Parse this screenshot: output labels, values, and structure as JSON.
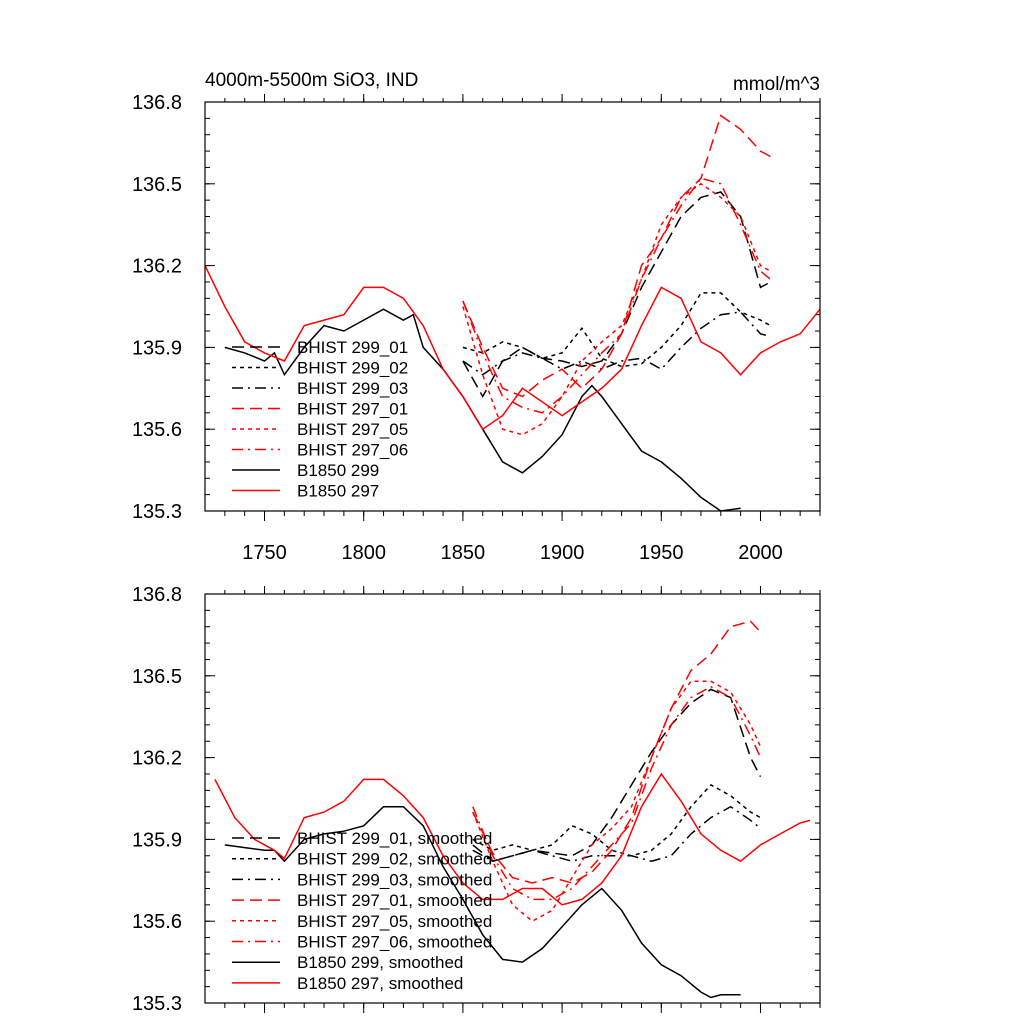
{
  "chart_data": [
    {
      "type": "line",
      "title_left": "4000m-5500m SiO3, IND",
      "title_right": "mmol/m^3",
      "xlabel": "",
      "ylabel": "",
      "xlim": [
        1720,
        2030
      ],
      "ylim": [
        135.3,
        136.8
      ],
      "x_ticks": [
        1750,
        1800,
        1850,
        1900,
        1950,
        2000
      ],
      "x_tick_labels": [
        "1750",
        "1800",
        "1850",
        "1900",
        "1950",
        "2000"
      ],
      "y_ticks": [
        135.3,
        135.6,
        135.9,
        136.2,
        136.5,
        136.8
      ],
      "y_tick_labels": [
        "135.3",
        "135.6",
        "135.9",
        "136.2",
        "136.5",
        "136.8"
      ],
      "legend_position": "left-middle",
      "series": [
        {
          "name": "BHIST 299_01",
          "color": "#000000",
          "dash": "long-dash",
          "x": [
            1850,
            1860,
            1870,
            1880,
            1890,
            1900,
            1910,
            1920,
            1930,
            1940,
            1950,
            1960,
            1970,
            1980,
            1990,
            2000,
            2005
          ],
          "y": [
            135.85,
            135.72,
            135.85,
            135.9,
            135.86,
            135.85,
            135.83,
            135.85,
            135.95,
            136.12,
            136.25,
            136.38,
            136.45,
            136.47,
            136.38,
            136.12,
            136.14
          ]
        },
        {
          "name": "BHIST 299_02",
          "color": "#000000",
          "dash": "short-dash",
          "x": [
            1850,
            1860,
            1870,
            1880,
            1890,
            1900,
            1910,
            1920,
            1930,
            1940,
            1950,
            1960,
            1970,
            1980,
            1990,
            2000,
            2005
          ],
          "y": [
            135.9,
            135.88,
            135.92,
            135.9,
            135.86,
            135.88,
            135.97,
            135.86,
            135.83,
            135.84,
            135.9,
            135.98,
            136.1,
            136.1,
            136.03,
            136.0,
            135.98
          ]
        },
        {
          "name": "BHIST 299_03",
          "color": "#000000",
          "dash": "dash-dot",
          "x": [
            1850,
            1860,
            1870,
            1880,
            1890,
            1900,
            1910,
            1920,
            1930,
            1940,
            1950,
            1960,
            1970,
            1980,
            1990,
            2000,
            2005
          ],
          "y": [
            135.85,
            135.8,
            135.85,
            135.88,
            135.86,
            135.82,
            135.85,
            135.82,
            135.85,
            135.86,
            135.82,
            135.9,
            135.97,
            136.02,
            136.03,
            135.95,
            135.94
          ]
        },
        {
          "name": "BHIST 297_01",
          "color": "#ff0000",
          "dash": "long-dash",
          "x": [
            1850,
            1860,
            1870,
            1880,
            1890,
            1900,
            1910,
            1920,
            1930,
            1940,
            1950,
            1960,
            1970,
            1980,
            1990,
            2000,
            2005
          ],
          "y": [
            136.07,
            135.9,
            135.75,
            135.72,
            135.78,
            135.82,
            135.75,
            135.82,
            135.95,
            136.2,
            136.3,
            136.45,
            136.52,
            136.75,
            136.7,
            136.62,
            136.6
          ]
        },
        {
          "name": "BHIST 297_05",
          "color": "#ff0000",
          "dash": "short-dash",
          "x": [
            1850,
            1860,
            1870,
            1880,
            1890,
            1900,
            1910,
            1920,
            1930,
            1940,
            1950,
            1960,
            1970,
            1980,
            1990,
            2000,
            2005
          ],
          "y": [
            136.05,
            135.8,
            135.6,
            135.58,
            135.62,
            135.72,
            135.85,
            135.92,
            135.98,
            136.15,
            136.35,
            136.45,
            136.5,
            136.45,
            136.38,
            136.2,
            136.18
          ]
        },
        {
          "name": "BHIST 297_06",
          "color": "#ff0000",
          "dash": "dash-dot",
          "x": [
            1850,
            1860,
            1870,
            1880,
            1890,
            1900,
            1910,
            1920,
            1930,
            1940,
            1950,
            1960,
            1970,
            1980,
            1990,
            2000,
            2005
          ],
          "y": [
            136.07,
            135.88,
            135.72,
            135.68,
            135.66,
            135.72,
            135.8,
            135.88,
            135.95,
            136.15,
            136.3,
            136.42,
            136.52,
            136.5,
            136.35,
            136.18,
            136.15
          ]
        },
        {
          "name": "B1850 299",
          "color": "#000000",
          "dash": "solid",
          "x": [
            1730,
            1740,
            1750,
            1755,
            1760,
            1770,
            1780,
            1790,
            1800,
            1810,
            1820,
            1825,
            1830,
            1840,
            1850,
            1860,
            1870,
            1880,
            1890,
            1900,
            1910,
            1915,
            1920,
            1930,
            1940,
            1950,
            1960,
            1970,
            1980,
            1990
          ],
          "y": [
            135.9,
            135.88,
            135.85,
            135.88,
            135.8,
            135.9,
            135.98,
            135.96,
            136.0,
            136.04,
            136.0,
            136.02,
            135.9,
            135.82,
            135.72,
            135.6,
            135.48,
            135.44,
            135.5,
            135.58,
            135.72,
            135.76,
            135.72,
            135.62,
            135.52,
            135.48,
            135.42,
            135.35,
            135.3,
            135.31
          ]
        },
        {
          "name": "B1850 297",
          "color": "#ff0000",
          "dash": "solid",
          "x": [
            1720,
            1730,
            1740,
            1750,
            1760,
            1770,
            1780,
            1790,
            1800,
            1810,
            1820,
            1830,
            1840,
            1850,
            1860,
            1870,
            1880,
            1890,
            1900,
            1910,
            1920,
            1930,
            1940,
            1950,
            1960,
            1970,
            1980,
            1990,
            2000,
            2010,
            2020,
            2030
          ],
          "y": [
            136.2,
            136.05,
            135.92,
            135.88,
            135.85,
            135.98,
            136.0,
            136.02,
            136.12,
            136.12,
            136.08,
            135.98,
            135.82,
            135.72,
            135.6,
            135.65,
            135.75,
            135.7,
            135.65,
            135.7,
            135.75,
            135.82,
            135.98,
            136.12,
            136.08,
            135.92,
            135.88,
            135.8,
            135.88,
            135.92,
            135.95,
            136.04
          ]
        }
      ]
    },
    {
      "type": "line",
      "title_left": "",
      "title_right": "",
      "xlabel": "",
      "ylabel": "",
      "xlim": [
        1720,
        2030
      ],
      "ylim": [
        135.3,
        136.8
      ],
      "x_ticks": [
        1750,
        1800,
        1850,
        1900,
        1950,
        2000
      ],
      "x_tick_labels": [],
      "y_ticks": [
        135.3,
        135.6,
        135.9,
        136.2,
        136.5,
        136.8
      ],
      "y_tick_labels": [
        "135.3",
        "135.6",
        "135.9",
        "136.2",
        "136.5",
        "136.8"
      ],
      "legend_position": "bottom-left",
      "series": [
        {
          "name": "BHIST 299_01, smoothed",
          "color": "#000000",
          "dash": "long-dash",
          "x": [
            1855,
            1865,
            1875,
            1885,
            1895,
            1905,
            1915,
            1925,
            1935,
            1945,
            1955,
            1965,
            1975,
            1985,
            1995,
            2000
          ],
          "y": [
            135.88,
            135.82,
            135.84,
            135.86,
            135.85,
            135.84,
            135.88,
            135.98,
            136.1,
            136.22,
            136.32,
            136.4,
            136.45,
            136.42,
            136.2,
            136.13
          ]
        },
        {
          "name": "BHIST 299_02, smoothed",
          "color": "#000000",
          "dash": "short-dash",
          "x": [
            1855,
            1865,
            1875,
            1885,
            1895,
            1905,
            1915,
            1925,
            1935,
            1945,
            1955,
            1965,
            1975,
            1985,
            1995,
            2000
          ],
          "y": [
            135.9,
            135.86,
            135.88,
            135.86,
            135.88,
            135.95,
            135.92,
            135.86,
            135.84,
            135.86,
            135.92,
            136.02,
            136.1,
            136.06,
            136.0,
            135.98
          ]
        },
        {
          "name": "BHIST 299_03, smoothed",
          "color": "#000000",
          "dash": "dash-dot",
          "x": [
            1855,
            1865,
            1875,
            1885,
            1895,
            1905,
            1915,
            1925,
            1935,
            1945,
            1955,
            1965,
            1975,
            1985,
            1995,
            2000
          ],
          "y": [
            135.86,
            135.82,
            135.84,
            135.86,
            135.84,
            135.82,
            135.84,
            135.84,
            135.84,
            135.82,
            135.84,
            135.92,
            135.98,
            136.02,
            135.97,
            135.94
          ]
        },
        {
          "name": "BHIST 297_01, smoothed",
          "color": "#ff0000",
          "dash": "long-dash",
          "x": [
            1855,
            1865,
            1875,
            1885,
            1895,
            1905,
            1915,
            1925,
            1935,
            1945,
            1955,
            1965,
            1975,
            1985,
            1995,
            2000
          ],
          "y": [
            136.0,
            135.85,
            135.76,
            135.74,
            135.76,
            135.74,
            135.78,
            135.86,
            135.98,
            136.2,
            136.38,
            136.52,
            136.58,
            136.68,
            136.7,
            136.66
          ]
        },
        {
          "name": "BHIST 297_05, smoothed",
          "color": "#ff0000",
          "dash": "short-dash",
          "x": [
            1855,
            1865,
            1875,
            1885,
            1895,
            1905,
            1915,
            1925,
            1935,
            1945,
            1955,
            1965,
            1975,
            1985,
            1995,
            2000
          ],
          "y": [
            136.0,
            135.82,
            135.66,
            135.6,
            135.64,
            135.76,
            135.88,
            135.94,
            136.02,
            136.2,
            136.38,
            136.48,
            136.48,
            136.44,
            136.32,
            136.24
          ]
        },
        {
          "name": "BHIST 297_06, smoothed",
          "color": "#ff0000",
          "dash": "dash-dot",
          "x": [
            1855,
            1865,
            1875,
            1885,
            1895,
            1905,
            1915,
            1925,
            1935,
            1945,
            1955,
            1965,
            1975,
            1985,
            1995,
            2000
          ],
          "y": [
            136.02,
            135.84,
            135.72,
            135.68,
            135.68,
            135.72,
            135.8,
            135.88,
            135.96,
            136.16,
            136.32,
            136.42,
            136.46,
            136.42,
            136.28,
            136.2
          ]
        },
        {
          "name": "B1850 299, smoothed",
          "color": "#000000",
          "dash": "solid",
          "x": [
            1730,
            1740,
            1750,
            1755,
            1760,
            1770,
            1780,
            1790,
            1800,
            1810,
            1820,
            1830,
            1840,
            1850,
            1860,
            1870,
            1880,
            1890,
            1900,
            1910,
            1920,
            1930,
            1940,
            1950,
            1960,
            1970,
            1975,
            1980,
            1990
          ],
          "y": [
            135.88,
            135.87,
            135.86,
            135.86,
            135.82,
            135.9,
            135.92,
            135.93,
            135.95,
            136.02,
            136.02,
            135.95,
            135.8,
            135.68,
            135.55,
            135.46,
            135.45,
            135.5,
            135.58,
            135.66,
            135.72,
            135.64,
            135.52,
            135.44,
            135.4,
            135.34,
            135.32,
            135.33,
            135.33
          ]
        },
        {
          "name": "B1850 297, smoothed",
          "color": "#ff0000",
          "dash": "solid",
          "x": [
            1725,
            1735,
            1745,
            1755,
            1760,
            1770,
            1780,
            1790,
            1800,
            1810,
            1820,
            1830,
            1840,
            1850,
            1860,
            1870,
            1880,
            1890,
            1900,
            1910,
            1920,
            1930,
            1940,
            1950,
            1960,
            1970,
            1980,
            1990,
            2000,
            2010,
            2020,
            2025
          ],
          "y": [
            136.12,
            135.98,
            135.9,
            135.86,
            135.83,
            135.98,
            136.0,
            136.04,
            136.12,
            136.12,
            136.06,
            135.98,
            135.84,
            135.74,
            135.68,
            135.68,
            135.72,
            135.72,
            135.66,
            135.68,
            135.74,
            135.84,
            136.02,
            136.14,
            136.04,
            135.92,
            135.86,
            135.82,
            135.88,
            135.92,
            135.96,
            135.97
          ]
        }
      ]
    }
  ]
}
